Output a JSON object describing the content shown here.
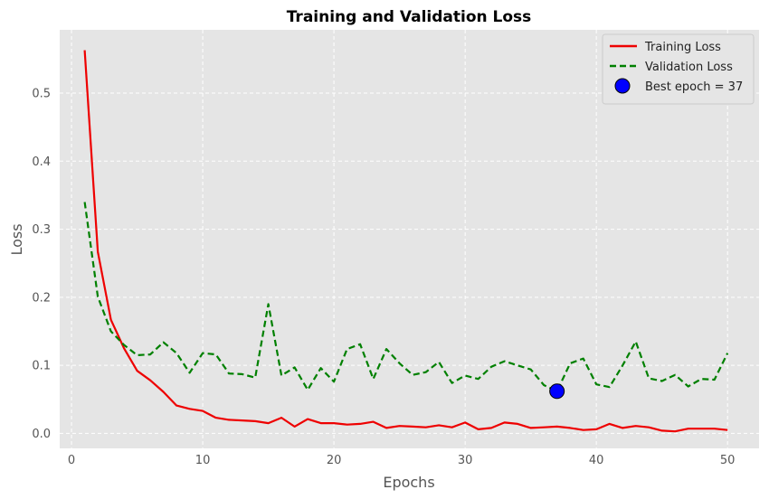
{
  "chart_data": {
    "type": "line",
    "title": "Training and Validation Loss",
    "xlabel": "Epochs",
    "ylabel": "Loss",
    "xlim": [
      -0.9,
      52.4
    ],
    "ylim": [
      -0.022,
      0.593
    ],
    "xticks": [
      0,
      10,
      20,
      30,
      40,
      50
    ],
    "yticks": [
      0.0,
      0.1,
      0.2,
      0.3,
      0.4,
      0.5
    ],
    "grid": true,
    "legend_position": "top-right",
    "x": [
      1,
      2,
      3,
      4,
      5,
      6,
      7,
      8,
      9,
      10,
      11,
      12,
      13,
      14,
      15,
      16,
      17,
      18,
      19,
      20,
      21,
      22,
      23,
      24,
      25,
      26,
      27,
      28,
      29,
      30,
      31,
      32,
      33,
      34,
      35,
      36,
      37,
      38,
      39,
      40,
      41,
      42,
      43,
      44,
      45,
      46,
      47,
      48,
      49,
      50
    ],
    "series": [
      {
        "name": "Training Loss",
        "color": "#ee0000",
        "style": "solid",
        "values": [
          0.563,
          0.267,
          0.167,
          0.125,
          0.092,
          0.078,
          0.061,
          0.041,
          0.036,
          0.033,
          0.023,
          0.02,
          0.019,
          0.018,
          0.015,
          0.023,
          0.01,
          0.021,
          0.015,
          0.015,
          0.013,
          0.014,
          0.017,
          0.008,
          0.011,
          0.01,
          0.009,
          0.012,
          0.009,
          0.016,
          0.006,
          0.008,
          0.016,
          0.014,
          0.008,
          0.009,
          0.01,
          0.008,
          0.005,
          0.006,
          0.014,
          0.008,
          0.011,
          0.009,
          0.004,
          0.003,
          0.007,
          0.007,
          0.007,
          0.005
        ]
      },
      {
        "name": "Validation Loss",
        "color": "#008000",
        "style": "dashed",
        "values": [
          0.34,
          0.201,
          0.15,
          0.13,
          0.115,
          0.116,
          0.134,
          0.118,
          0.089,
          0.118,
          0.116,
          0.088,
          0.087,
          0.082,
          0.19,
          0.085,
          0.097,
          0.064,
          0.096,
          0.076,
          0.124,
          0.131,
          0.08,
          0.124,
          0.103,
          0.086,
          0.09,
          0.105,
          0.074,
          0.085,
          0.08,
          0.098,
          0.106,
          0.1,
          0.094,
          0.071,
          0.062,
          0.103,
          0.11,
          0.072,
          0.068,
          0.1,
          0.135,
          0.081,
          0.077,
          0.086,
          0.069,
          0.08,
          0.079,
          0.118
        ]
      }
    ],
    "highlight_point": {
      "name": "Best epoch = 37",
      "x": 37,
      "y": 0.062,
      "color": "#0000ff"
    }
  }
}
